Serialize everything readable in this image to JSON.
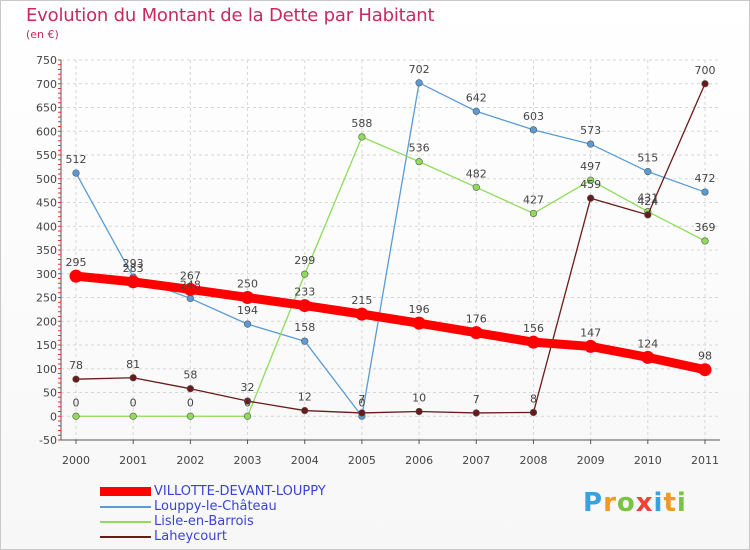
{
  "header": {
    "title": "Evolution du Montant de la Dette par Habitant",
    "subtitle": "(en €)"
  },
  "logo": {
    "letters": [
      "P",
      "r",
      "o",
      "x",
      "i",
      "t",
      "i"
    ],
    "colors": [
      "#3aa0e0",
      "#f29a1e",
      "#7cc242",
      "#ef4136",
      "#3aa0e0",
      "#f29a1e",
      "#7cc242"
    ]
  },
  "chart_data": {
    "type": "line",
    "title": "Evolution du Montant de la Dette par Habitant",
    "ylabel": "(en €)",
    "x": [
      "2000",
      "2001",
      "2002",
      "2003",
      "2004",
      "2005",
      "2006",
      "2007",
      "2008",
      "2009",
      "2010",
      "2011"
    ],
    "ylim": [
      -50,
      750
    ],
    "yticks": [
      -50,
      0,
      50,
      100,
      150,
      200,
      250,
      300,
      350,
      400,
      450,
      500,
      550,
      600,
      650,
      700,
      750
    ],
    "grid": true,
    "legend_position": "bottom-left",
    "series": [
      {
        "name": "VILLOTTE-DEVANT-LOUPPY",
        "color": "#ff0000",
        "values": [
          295,
          283,
          267,
          250,
          233,
          215,
          196,
          176,
          156,
          147,
          124,
          98
        ]
      },
      {
        "name": "Louppy-le-Château",
        "color": "#5b9bd5",
        "values": [
          512,
          293,
          248,
          194,
          158,
          0,
          702,
          642,
          603,
          573,
          515,
          472
        ]
      },
      {
        "name": "Lisle-en-Barrois",
        "color": "#8fdb5a",
        "values": [
          0,
          0,
          0,
          0,
          299,
          588,
          536,
          482,
          427,
          497,
          431,
          369
        ]
      },
      {
        "name": "Laheycourt",
        "color": "#6b1a1a",
        "values": [
          78,
          81,
          58,
          32,
          12,
          7,
          10,
          7,
          8,
          459,
          424,
          700
        ]
      }
    ]
  }
}
